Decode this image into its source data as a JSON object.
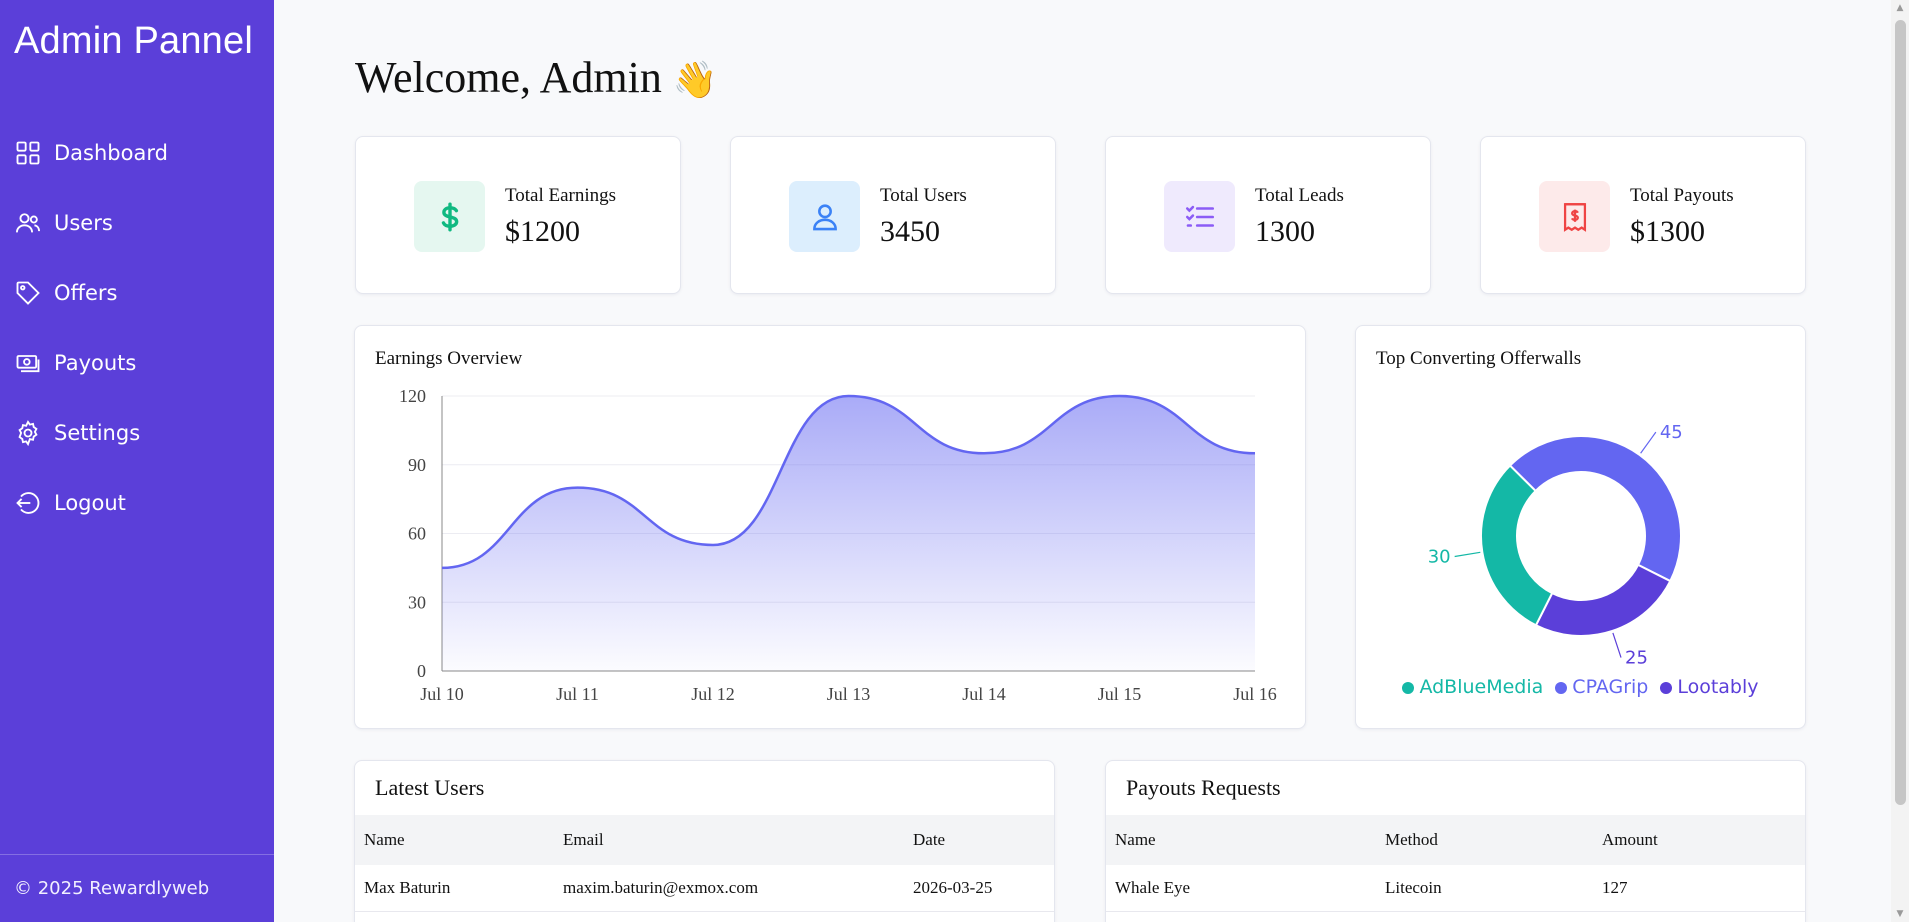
{
  "sidebar": {
    "brand": "Admin Pannel",
    "items": [
      {
        "label": "Dashboard",
        "icon": "grid-icon"
      },
      {
        "label": "Users",
        "icon": "users-icon"
      },
      {
        "label": "Offers",
        "icon": "tag-icon"
      },
      {
        "label": "Payouts",
        "icon": "money-icon"
      },
      {
        "label": "Settings",
        "icon": "gear-icon"
      },
      {
        "label": "Logout",
        "icon": "logout-icon"
      }
    ],
    "footer": "© 2025 Rewardlyweb"
  },
  "header": {
    "welcome": "Welcome, Admin",
    "emoji": "👋"
  },
  "stats": [
    {
      "label": "Total Earnings",
      "value": "$1200",
      "icon": "dollar-icon",
      "color": "#10b981"
    },
    {
      "label": "Total Users",
      "value": "3450",
      "icon": "user-icon",
      "color": "#3b82f6"
    },
    {
      "label": "Total Leads",
      "value": "1300",
      "icon": "checklist-icon",
      "color": "#8b5cf6"
    },
    {
      "label": "Total Payouts",
      "value": "$1300",
      "icon": "receipt-dollar-icon",
      "color": "#ef4444"
    }
  ],
  "colors": {
    "sidebar": "#5b3fd9",
    "accent": "#6366f1",
    "teal": "#14b8a6",
    "purple": "#5b3fd9"
  },
  "chart_data": [
    {
      "type": "area",
      "title": "Earnings Overview",
      "x": [
        "Jul 10",
        "Jul 11",
        "Jul 12",
        "Jul 13",
        "Jul 14",
        "Jul 15",
        "Jul 16"
      ],
      "values": [
        45,
        80,
        55,
        120,
        95,
        120,
        95
      ],
      "ylim": [
        0,
        120
      ],
      "yticks": [
        0,
        30,
        60,
        90,
        120
      ],
      "grid": true
    },
    {
      "type": "pie",
      "title": "Top Converting Offerwalls",
      "categories": [
        "AdBlueMedia",
        "CPAGrip",
        "Lootably"
      ],
      "values": [
        30,
        45,
        25
      ],
      "colors": [
        "#14b8a6",
        "#6366f1",
        "#5b3fd9"
      ],
      "donut": true,
      "legend": "bottom"
    }
  ],
  "latest_users": {
    "title": "Latest Users",
    "columns": [
      "Name",
      "Email",
      "Date"
    ],
    "rows": [
      [
        "Max Baturin",
        "maxim.baturin@exmox.com",
        "2026-03-25"
      ]
    ]
  },
  "payout_requests": {
    "title": "Payouts Requests",
    "columns": [
      "Name",
      "Method",
      "Amount"
    ],
    "rows": [
      [
        "Whale Eye",
        "Litecoin",
        "127"
      ]
    ]
  }
}
